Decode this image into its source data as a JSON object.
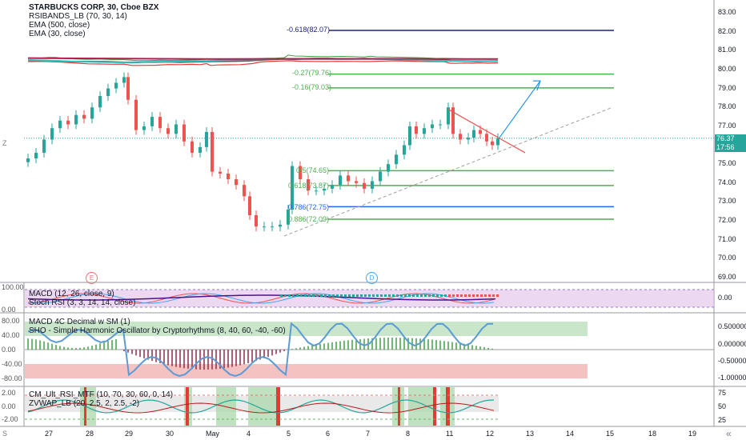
{
  "main_legend": {
    "title": "STARBUCKS CORP, 30, Cboe BZX",
    "line2": "RSIBANDS_LB (70, 30, 14)",
    "line3": "EMA (500, close)",
    "line4": "EMA (30, close)"
  },
  "fib_labels": [
    {
      "text": "-0.618(82.07)",
      "color": "#1a237e"
    },
    {
      "text": "-0.27(79.76)",
      "color": "#4caf50"
    },
    {
      "text": "-0.16(79.03)",
      "color": "#4caf50"
    },
    {
      "text": "0.5(74.65)",
      "color": "#4caf50"
    },
    {
      "text": "0.618(73.87)",
      "color": "#4caf50"
    },
    {
      "text": "0.786(72.75)",
      "color": "#2962ff"
    },
    {
      "text": "0.886(72.09)",
      "color": "#4caf50"
    }
  ],
  "price_axis": [
    "83.00",
    "82.00",
    "81.00",
    "80.00",
    "79.00",
    "78.00",
    "77.00",
    "76.00",
    "75.00",
    "74.00",
    "73.00",
    "72.00",
    "71.00",
    "70.00",
    "69.00"
  ],
  "price_tags": {
    "last": "76.37",
    "time": "17:56"
  },
  "event_markers": {
    "earnings": "E",
    "dividend": "D"
  },
  "pane2": {
    "legend1": "MACD (12, 26, close, 9)",
    "legend2": "Stoch RSI (3, 3, 14, 14, close)",
    "left_axis": [
      "100.00",
      "0.00"
    ],
    "right_axis": [
      "0.00"
    ]
  },
  "pane3": {
    "legend1": "MACD 4C Decimal w SM (1)",
    "legend2": "SHO - Simple Harmonic Oscillator by Cryptorhythms (8, 40, 60, -40, -60)",
    "left_axis": [
      "80.00",
      "40.00",
      "0.00",
      "-40.00",
      "-80.00"
    ],
    "right_axis": [
      "0.500000",
      "0.000000",
      "-0.500000",
      "-1.000000"
    ]
  },
  "pane4": {
    "legend1": "CM_Ult_RSI_MTF (10, 70, 30, 60, 0, 14)",
    "legend2": "ZVWAP_LB (20, 2.5, 2, 2.5, -2)",
    "left_axis": [
      "2.00",
      "0.00",
      "-2.00"
    ],
    "right_axis": [
      "75",
      "50",
      "25"
    ]
  },
  "time_axis": [
    "27",
    "28",
    "29",
    "30",
    "May",
    "4",
    "5",
    "6",
    "7",
    "8",
    "11",
    "12",
    "13",
    "14",
    "15",
    "18",
    "19"
  ],
  "corner": {
    "left_z": "Z",
    "bottom_s": "S",
    "chevron": "«"
  },
  "colors": {
    "up": "#26a69a",
    "down": "#ef5350",
    "ema30": "#26c6c1",
    "ema500": "#b71c4c",
    "rsi_red": "#e53935",
    "rsi_gray": "#5f5f5f",
    "rsi_green": "#43a047",
    "fib_blue": "#1a237e",
    "fib_green": "#4caf50",
    "fib_mid": "#2962ff",
    "arrow": "#2196f3"
  }
}
